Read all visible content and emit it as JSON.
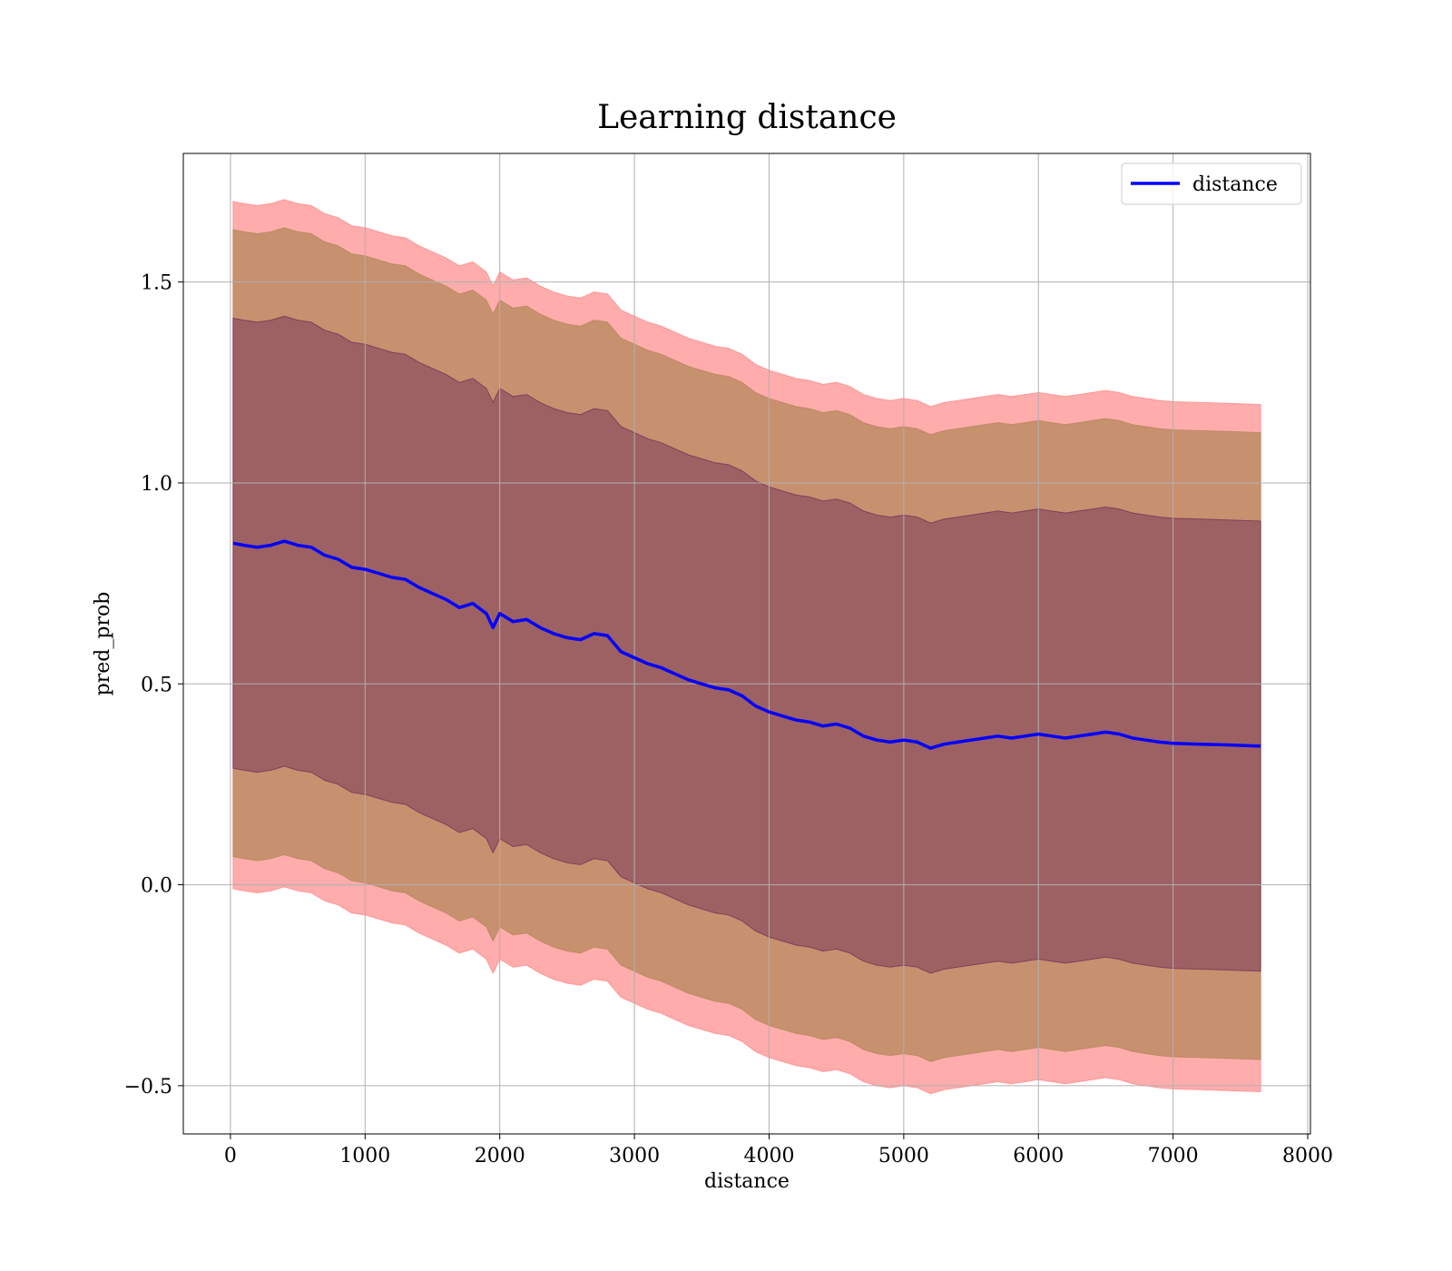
{
  "chart_data": {
    "type": "line",
    "title": "Learning distance",
    "xlabel": "distance",
    "ylabel": "pred_prob",
    "xlim": [
      -350,
      8020
    ],
    "ylim": [
      -0.62,
      1.82
    ],
    "grid": true,
    "legend_position": "top-right",
    "x_ticks": [
      0,
      1000,
      2000,
      3000,
      4000,
      5000,
      6000,
      7000,
      8000
    ],
    "x_tick_labels": [
      "0",
      "1000",
      "2000",
      "3000",
      "4000",
      "5000",
      "6000",
      "7000",
      "8000"
    ],
    "y_ticks": [
      -0.5,
      0.0,
      0.5,
      1.0,
      1.5
    ],
    "y_tick_labels": [
      "−0.5",
      "0.0",
      "0.5",
      "1.0",
      "1.5"
    ],
    "colors": {
      "line": "#0000ff",
      "band_outer": "#ff9090",
      "band_middle": "#b98a60",
      "band_inner": "#7a3a5a"
    },
    "series": [
      {
        "name": "distance",
        "x": [
          20,
          100,
          200,
          300,
          400,
          500,
          600,
          700,
          800,
          900,
          1000,
          1100,
          1200,
          1300,
          1400,
          1500,
          1600,
          1700,
          1800,
          1900,
          1950,
          2000,
          2100,
          2200,
          2300,
          2400,
          2500,
          2600,
          2700,
          2800,
          2900,
          3000,
          3100,
          3200,
          3300,
          3400,
          3500,
          3600,
          3700,
          3800,
          3900,
          4000,
          4100,
          4200,
          4300,
          4400,
          4500,
          4600,
          4700,
          4800,
          4900,
          5000,
          5100,
          5200,
          5300,
          5400,
          5500,
          5600,
          5700,
          5800,
          5900,
          6000,
          6100,
          6200,
          6300,
          6400,
          6500,
          6600,
          6700,
          6800,
          6900,
          7000,
          7200,
          7400,
          7650
        ],
        "y": [
          0.85,
          0.845,
          0.84,
          0.845,
          0.855,
          0.845,
          0.84,
          0.82,
          0.81,
          0.79,
          0.785,
          0.775,
          0.765,
          0.76,
          0.74,
          0.725,
          0.71,
          0.69,
          0.7,
          0.675,
          0.64,
          0.675,
          0.655,
          0.66,
          0.64,
          0.625,
          0.615,
          0.61,
          0.625,
          0.62,
          0.58,
          0.565,
          0.55,
          0.54,
          0.525,
          0.51,
          0.5,
          0.49,
          0.485,
          0.47,
          0.445,
          0.43,
          0.42,
          0.41,
          0.405,
          0.395,
          0.4,
          0.39,
          0.37,
          0.36,
          0.355,
          0.36,
          0.355,
          0.34,
          0.35,
          0.355,
          0.36,
          0.365,
          0.37,
          0.365,
          0.37,
          0.375,
          0.37,
          0.365,
          0.37,
          0.375,
          0.38,
          0.375,
          0.365,
          0.36,
          0.355,
          0.352,
          0.35,
          0.348,
          0.345
        ]
      }
    ],
    "bands": [
      {
        "lower_offset": -0.86,
        "upper_offset": 0.85
      },
      {
        "lower_offset": -0.78,
        "upper_offset": 0.78
      },
      {
        "lower_offset": -0.56,
        "upper_offset": 0.56
      }
    ]
  }
}
